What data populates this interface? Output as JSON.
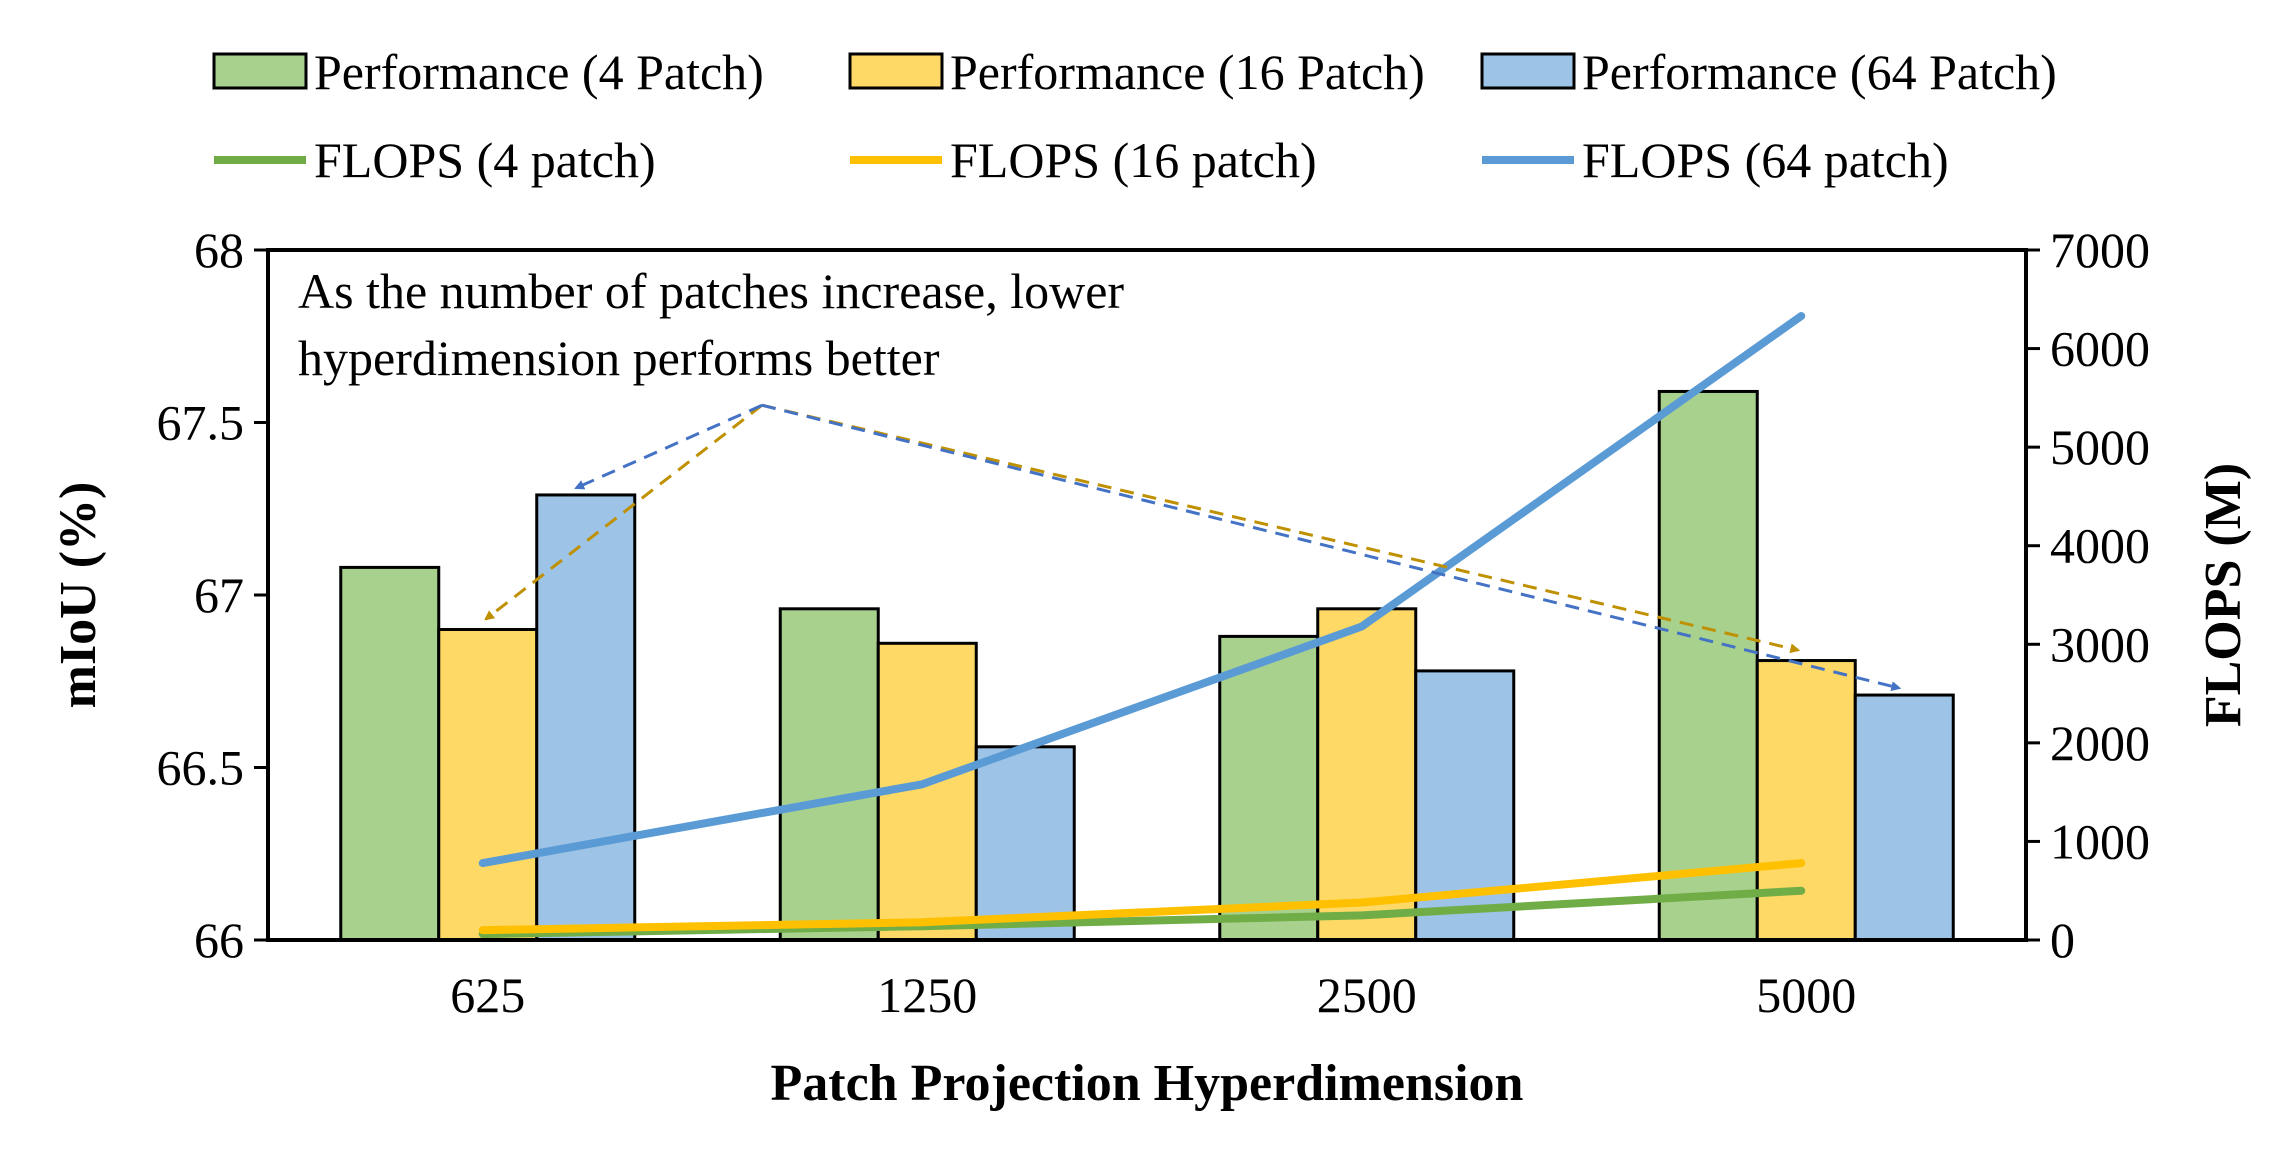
{
  "chart_data": {
    "type": "bar",
    "title": "",
    "xlabel": "Patch Projection Hyperdimension",
    "ylabel": "mIoU (%)",
    "y2label": "FLOPS (M)",
    "categories": [
      "625",
      "1250",
      "2500",
      "5000"
    ],
    "ylim": [
      66,
      68
    ],
    "yticks": [
      "66",
      "66.5",
      "67",
      "67.5",
      "68"
    ],
    "y2lim": [
      0,
      7000
    ],
    "y2ticks": [
      "0",
      "1000",
      "2000",
      "3000",
      "4000",
      "5000",
      "6000",
      "7000"
    ],
    "series": [
      {
        "name": "Performance (4 Patch)",
        "kind": "bar",
        "axis": "left",
        "color": "#A9D18E",
        "values": [
          67.08,
          66.96,
          66.88,
          67.59
        ]
      },
      {
        "name": "Performance (16 Patch)",
        "kind": "bar",
        "axis": "left",
        "color": "#FFD966",
        "values": [
          66.9,
          66.86,
          66.96,
          66.81
        ]
      },
      {
        "name": "Performance (64 Patch)",
        "kind": "bar",
        "axis": "left",
        "color": "#9DC3E6",
        "values": [
          67.29,
          66.56,
          66.78,
          66.71
        ]
      },
      {
        "name": "FLOPS (4 patch)",
        "kind": "line",
        "axis": "right",
        "color": "#70AD47",
        "values": [
          60,
          140,
          250,
          500
        ]
      },
      {
        "name": "FLOPS (16 patch)",
        "kind": "line",
        "axis": "right",
        "color": "#FFC000",
        "values": [
          100,
          180,
          380,
          780
        ]
      },
      {
        "name": "FLOPS (64 patch)",
        "kind": "line",
        "axis": "right",
        "color": "#5B9BD5",
        "values": [
          780,
          1580,
          3180,
          6330
        ]
      }
    ],
    "annotation_lines": [
      "As the number of patches increase, lower",
      "hyperdimension performs better"
    ],
    "arrow_colors": {
      "gold": "#BF9000",
      "blue": "#4472C4"
    },
    "legend_position": "top",
    "grid": false
  }
}
